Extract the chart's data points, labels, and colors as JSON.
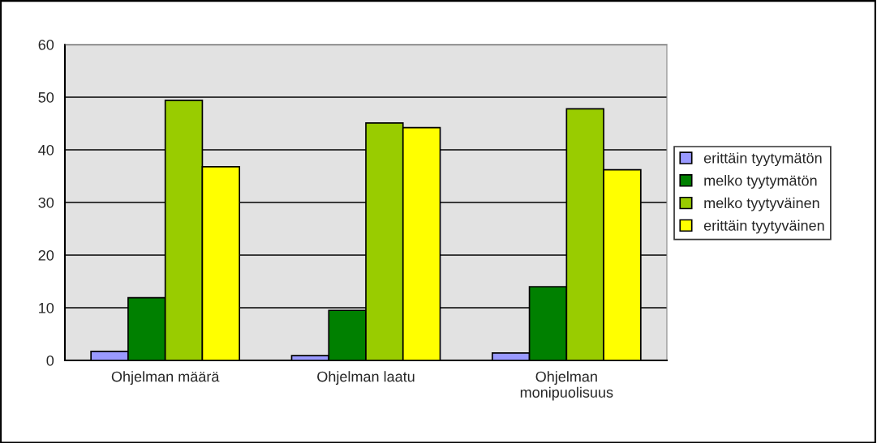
{
  "chart_data": {
    "type": "bar",
    "categories": [
      "Ohjelman määrä",
      "Ohjelman laatu",
      "Ohjelman\nmonipuolisuus"
    ],
    "series": [
      {
        "name": "erittäin tyytymätön",
        "color": "#9999ff",
        "values": [
          1.7,
          0.9,
          1.4
        ]
      },
      {
        "name": "melko tyytymätön",
        "color": "#008000",
        "values": [
          11.9,
          9.5,
          14.0
        ]
      },
      {
        "name": "melko tyytyväinen",
        "color": "#99cc00",
        "values": [
          49.4,
          45.1,
          47.8
        ]
      },
      {
        "name": "erittäin tyytyväinen",
        "color": "#ffff00",
        "values": [
          36.8,
          44.2,
          36.2
        ]
      }
    ],
    "ylim": [
      0,
      60
    ],
    "yticks": [
      0,
      10,
      20,
      30,
      40,
      50,
      60
    ],
    "grid": "y",
    "legend": "right"
  }
}
